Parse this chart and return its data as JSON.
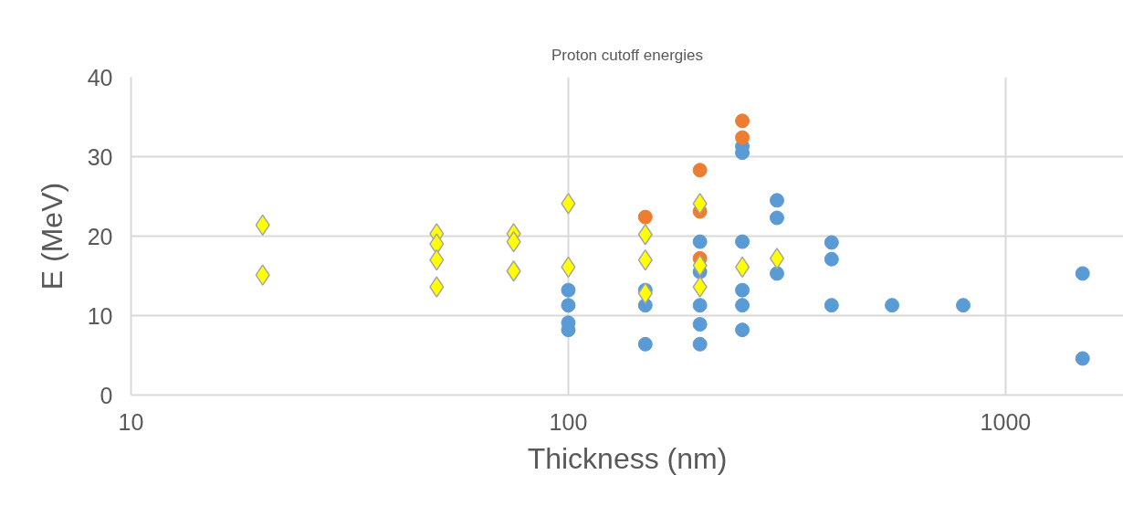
{
  "chart_data": {
    "type": "scatter",
    "title": "Proton cutoff energies",
    "xlabel": "Thickness (nm)",
    "ylabel": "E (MeV)",
    "log": "x",
    "xlim": [
      10,
      1860
    ],
    "xticks": [
      10,
      100,
      1000
    ],
    "ylim": [
      0,
      40
    ],
    "yticks": [
      0,
      10,
      20,
      30,
      40
    ],
    "grid": true,
    "series": [
      {
        "color": "#5b9bd5",
        "marker": "circle",
        "x": [
          100,
          100,
          100,
          100,
          150,
          150,
          150,
          200,
          200,
          200,
          200,
          200,
          250,
          250,
          250,
          250,
          250,
          250,
          300,
          300,
          300,
          400,
          400,
          400,
          550,
          800,
          1500,
          1500
        ],
        "values": [
          13.2,
          11.3,
          9.1,
          8.2,
          13.2,
          11.3,
          6.4,
          19.3,
          15.5,
          11.3,
          8.9,
          6.4,
          31.3,
          30.5,
          19.3,
          13.2,
          11.3,
          8.2,
          24.5,
          22.3,
          15.3,
          19.2,
          17.1,
          11.3,
          11.3,
          11.3,
          15.3,
          4.6
        ]
      },
      {
        "color": "#ed7d31",
        "marker": "circle",
        "x": [
          150,
          200,
          200,
          200,
          250,
          250
        ],
        "values": [
          22.4,
          28.3,
          23.1,
          17.2,
          34.5,
          32.4
        ]
      },
      {
        "color": "#ffff00",
        "marker": "diamond",
        "x": [
          20,
          20,
          50,
          50,
          50,
          50,
          75,
          75,
          75,
          100,
          100,
          150,
          150,
          150,
          200,
          200,
          200,
          250,
          300
        ],
        "values": [
          21.4,
          15.1,
          20.3,
          19.0,
          17.0,
          13.6,
          20.3,
          19.3,
          15.6,
          24.1,
          16.1,
          20.2,
          17.0,
          12.8,
          24.1,
          16.3,
          13.6,
          16.1,
          17.2
        ]
      }
    ]
  }
}
